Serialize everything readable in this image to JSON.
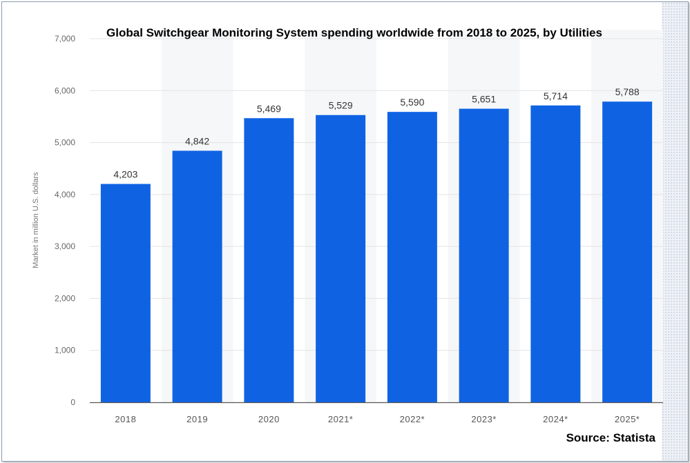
{
  "chart_data": {
    "type": "bar",
    "title": "Global Switchgear Monitoring System spending worldwide from 2018 to 2025, by Utilities",
    "ylabel": "Market in million U.S. dollars",
    "xlabel": "",
    "categories": [
      "2018",
      "2019",
      "2020",
      "2021*",
      "2022*",
      "2023*",
      "2024*",
      "2025*"
    ],
    "values": [
      4203,
      4842,
      5469,
      5529,
      5590,
      5651,
      5714,
      5788
    ],
    "value_labels": [
      "4,203",
      "4,842",
      "5,469",
      "5,529",
      "5,590",
      "5,651",
      "5,714",
      "5,788"
    ],
    "ylim": [
      0,
      7000
    ],
    "yticks": [
      0,
      1000,
      2000,
      3000,
      4000,
      5000,
      6000,
      7000
    ],
    "ytick_labels": [
      "0",
      "1,000",
      "2,000",
      "3,000",
      "4,000",
      "5,000",
      "6,000",
      "7,000"
    ],
    "grid": true,
    "bar_color": "#0f63e3",
    "source": "Source: Statista"
  }
}
